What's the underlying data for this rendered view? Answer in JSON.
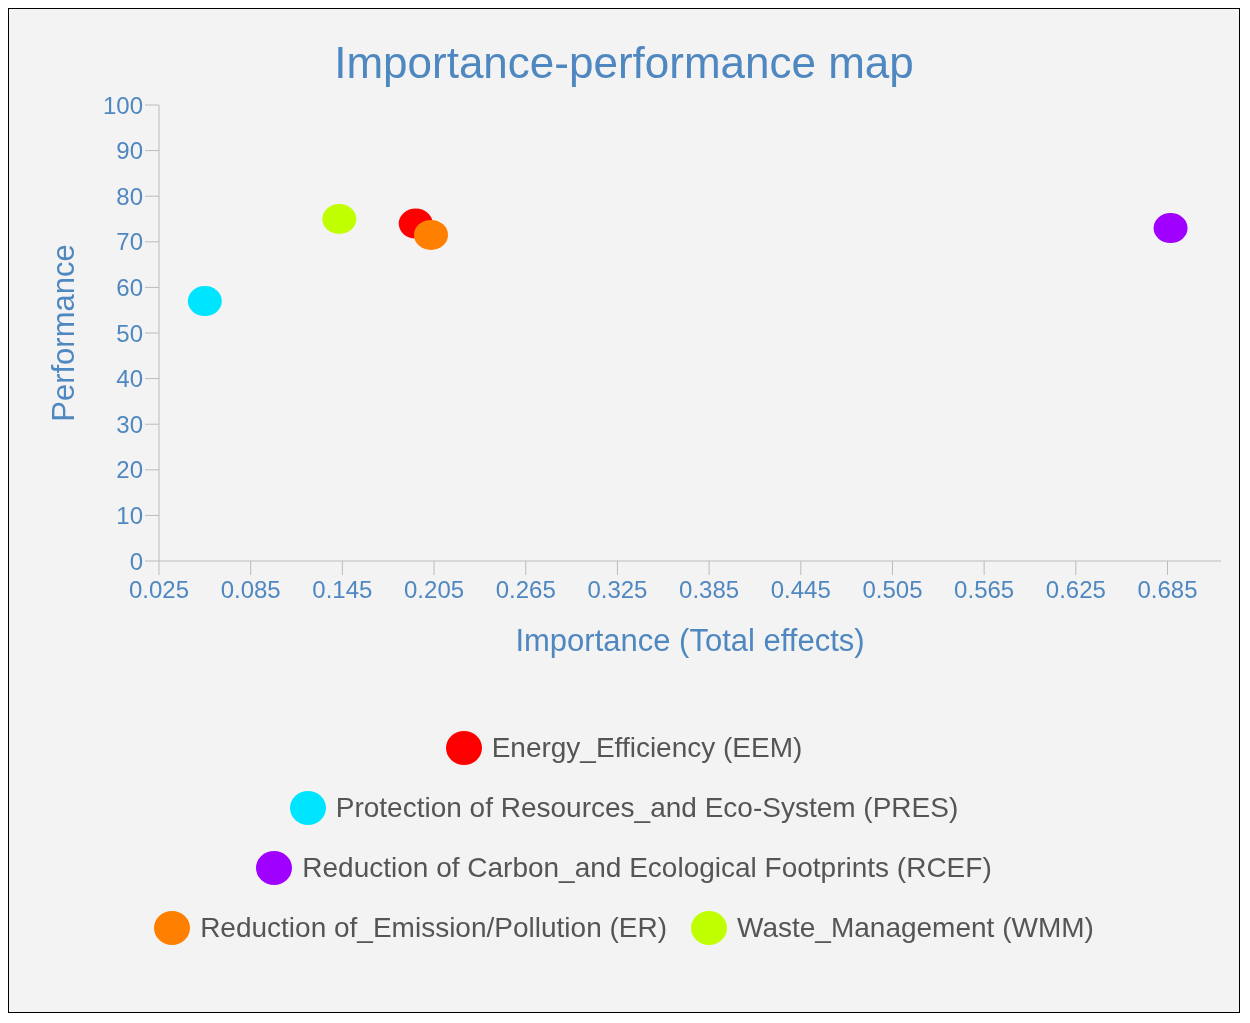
{
  "chart_data": {
    "type": "scatter",
    "title": "Importance-performance map",
    "xlabel": "Importance (Total effects)",
    "ylabel": "Performance",
    "xlim": [
      0.025,
      0.72
    ],
    "xticks": [
      0.025,
      0.085,
      0.145,
      0.205,
      0.265,
      0.325,
      0.385,
      0.445,
      0.505,
      0.565,
      0.625,
      0.685
    ],
    "ylim": [
      0,
      100
    ],
    "yticks": [
      0,
      10,
      20,
      30,
      40,
      50,
      60,
      70,
      80,
      90,
      100
    ],
    "series": [
      {
        "name": "Energy_Efficiency (EEM)",
        "color": "#ff0000",
        "x": [
          0.193
        ],
        "values": [
          74
        ]
      },
      {
        "name": "Protection of Resources_and Eco-System (PRES)",
        "color": "#00e5ff",
        "x": [
          0.055
        ],
        "values": [
          57
        ]
      },
      {
        "name": "Reduction of Carbon_and Ecological Footprints (RCEF)",
        "color": "#a000ff",
        "x": [
          0.687
        ],
        "values": [
          73
        ]
      },
      {
        "name": "Reduction of_Emission/Pollution (ER)",
        "color": "#ff7f00",
        "x": [
          0.203
        ],
        "values": [
          71.5
        ]
      },
      {
        "name": "Waste_Management (WMM)",
        "color": "#bfff00",
        "x": [
          0.143
        ],
        "values": [
          75
        ]
      }
    ],
    "marker": "circle",
    "grid": false,
    "legend": "bottom"
  }
}
